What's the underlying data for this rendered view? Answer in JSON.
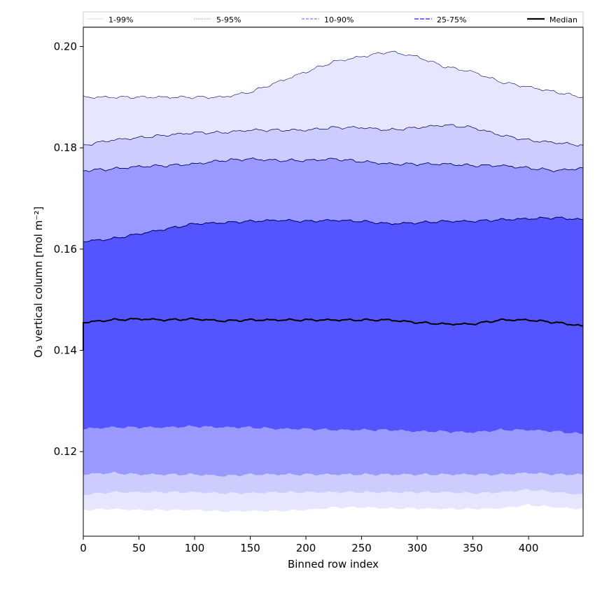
{
  "chart_data": {
    "type": "area",
    "title": "",
    "xlabel": "Binned row index",
    "ylabel": "O₃ vertical column [mol m⁻²]",
    "xlim": [
      0,
      449
    ],
    "ylim": [
      0.1033,
      0.2038
    ],
    "xticks": [
      0,
      50,
      100,
      150,
      200,
      250,
      300,
      350,
      400
    ],
    "yticks": [
      0.12,
      0.14,
      0.16,
      0.18,
      0.2
    ],
    "ytick_labels": [
      "0.12",
      "0.14",
      "0.16",
      "0.18",
      "0.20"
    ],
    "grid": false,
    "legend_position": "top",
    "x": [
      0,
      25,
      50,
      75,
      100,
      125,
      150,
      175,
      200,
      225,
      250,
      275,
      300,
      325,
      350,
      375,
      400,
      425,
      449
    ],
    "series": [
      {
        "name": "1-99%",
        "color": "#e6e6ff",
        "upper": [
          0.19,
          0.19,
          0.19,
          0.19,
          0.19,
          0.19,
          0.191,
          0.193,
          0.195,
          0.197,
          0.198,
          0.199,
          0.198,
          0.196,
          0.195,
          0.193,
          0.192,
          0.191,
          0.19
        ],
        "lower": [
          0.1085,
          0.1087,
          0.1085,
          0.1085,
          0.1085,
          0.1082,
          0.1083,
          0.1083,
          0.1085,
          0.109,
          0.109,
          0.1088,
          0.1088,
          0.1087,
          0.1087,
          0.1088,
          0.1095,
          0.109,
          0.1087
        ]
      },
      {
        "name": "5-95%",
        "color": "#ccccff",
        "upper": [
          0.1805,
          0.1815,
          0.182,
          0.1825,
          0.183,
          0.183,
          0.1835,
          0.1835,
          0.1835,
          0.184,
          0.184,
          0.1835,
          0.184,
          0.1845,
          0.184,
          0.1825,
          0.1815,
          0.181,
          0.1805
        ],
        "lower": [
          0.1115,
          0.112,
          0.112,
          0.112,
          0.112,
          0.1118,
          0.1118,
          0.112,
          0.112,
          0.112,
          0.112,
          0.112,
          0.112,
          0.112,
          0.1118,
          0.112,
          0.1125,
          0.112,
          0.1115
        ]
      },
      {
        "name": "10-90%",
        "color": "#9999ff",
        "upper": [
          0.1755,
          0.1758,
          0.1763,
          0.1765,
          0.1768,
          0.1775,
          0.1778,
          0.1775,
          0.1775,
          0.1778,
          0.1773,
          0.1768,
          0.1768,
          0.1768,
          0.1765,
          0.1765,
          0.176,
          0.1755,
          0.176
        ],
        "lower": [
          0.1155,
          0.1158,
          0.1155,
          0.1155,
          0.1155,
          0.1152,
          0.1155,
          0.1155,
          0.1155,
          0.1155,
          0.1155,
          0.1155,
          0.1155,
          0.1155,
          0.1155,
          0.1155,
          0.1158,
          0.1155,
          0.1155
        ]
      },
      {
        "name": "25-75%",
        "color": "#5555ff",
        "upper": [
          0.1615,
          0.162,
          0.163,
          0.164,
          0.165,
          0.1652,
          0.1655,
          0.1657,
          0.1655,
          0.1657,
          0.1655,
          0.165,
          0.1652,
          0.1655,
          0.1655,
          0.1658,
          0.166,
          0.1662,
          0.1658
        ],
        "lower": [
          0.1245,
          0.1248,
          0.1248,
          0.1248,
          0.125,
          0.1248,
          0.1248,
          0.1245,
          0.1245,
          0.1243,
          0.1243,
          0.1243,
          0.124,
          0.124,
          0.1238,
          0.1243,
          0.1243,
          0.124,
          0.1235
        ]
      },
      {
        "name": "Median",
        "color": "#000000",
        "values": [
          0.1455,
          0.146,
          0.1462,
          0.146,
          0.1462,
          0.1458,
          0.146,
          0.146,
          0.146,
          0.146,
          0.146,
          0.146,
          0.1455,
          0.1452,
          0.1452,
          0.146,
          0.146,
          0.1455,
          0.1448
        ]
      }
    ]
  }
}
